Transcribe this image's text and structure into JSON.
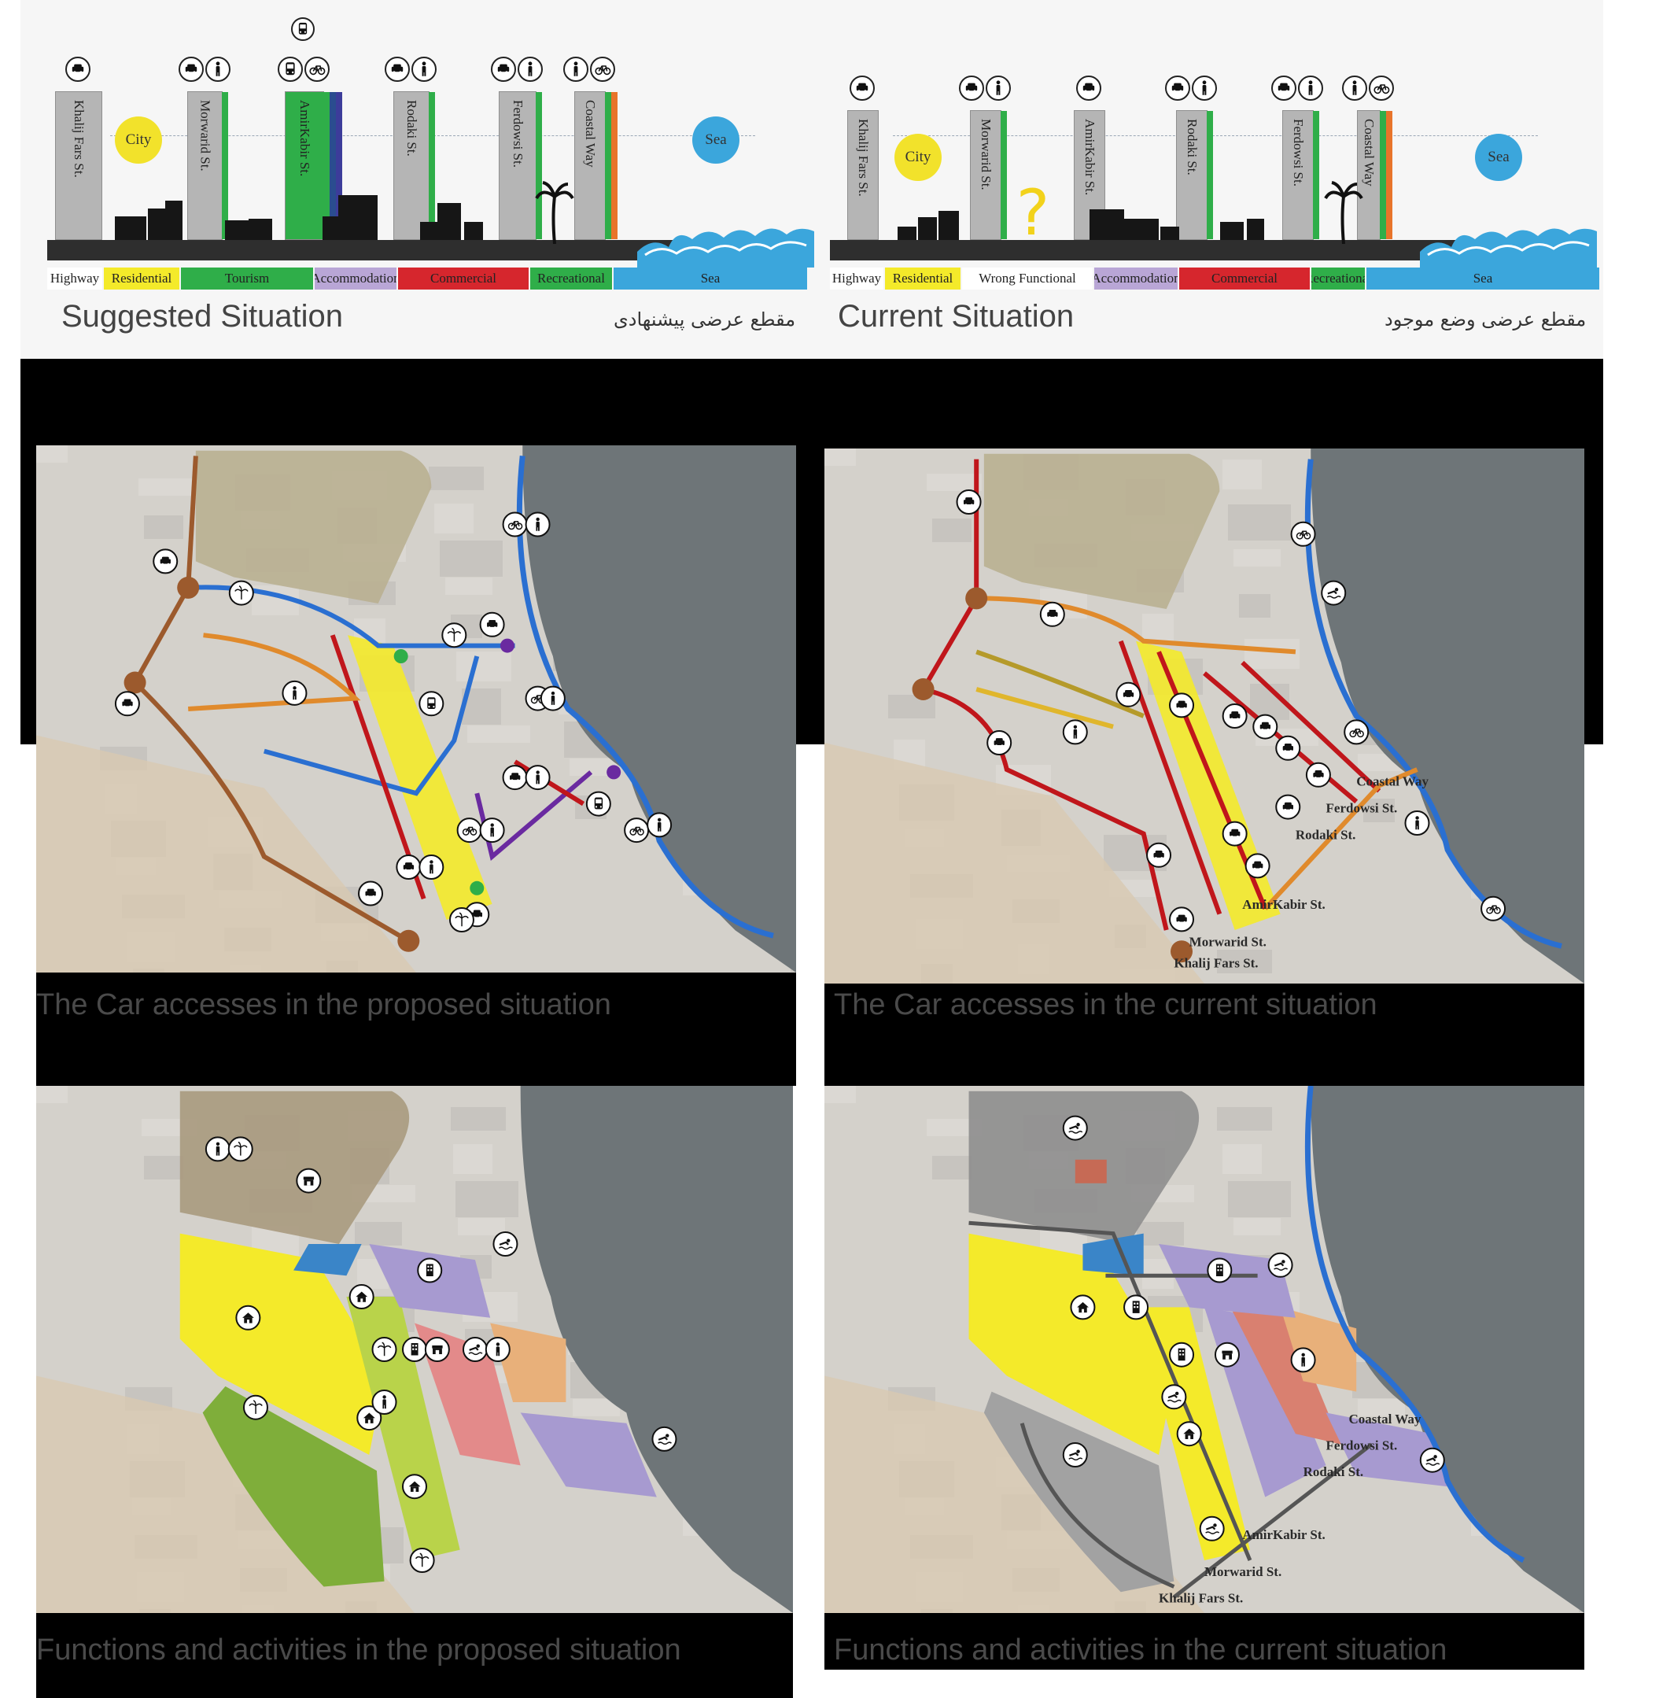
{
  "sections": {
    "suggested": {
      "title": "Suggested Situation",
      "subtitle_fa": "مقطع عرضی پیشنهادی",
      "city_label": "City",
      "sea_label": "Sea",
      "streets": [
        "Khalij Fars St.",
        "Morwarid St.",
        "AmirKabir St.",
        "Rodaki St.",
        "Ferdowsi St.",
        "Coastal Way"
      ],
      "legend": [
        "Highway",
        "Residential",
        "Tourism",
        "Accommodation",
        "Commercial",
        "Recreational",
        "Sea"
      ]
    },
    "current": {
      "title": "Current Situation",
      "subtitle_fa": "مقطع عرضی وضع موجود",
      "city_label": "City",
      "sea_label": "Sea",
      "question_mark": "?",
      "streets": [
        "Khalij Fars St.",
        "Morwarid St.",
        "AmirKabir St.",
        "Rodaki St.",
        "Ferdowsi St.",
        "Coastal Way"
      ],
      "legend": [
        "Highway",
        "Residential",
        "Wrong Functional",
        "Accommodation",
        "Commercial",
        "Recreational",
        "Sea"
      ]
    }
  },
  "maps": {
    "car_proposed": {
      "caption": "The Car accesses in the proposed situation"
    },
    "car_current": {
      "caption": "The Car accesses in the current situation",
      "labels": [
        "Coastal Way",
        "Ferdowsi St.",
        "Rodaki  St.",
        "AmirKabir St.",
        "Morwarid St.",
        "Khalij Fars St."
      ]
    },
    "func_proposed": {
      "caption": "Functions and activities in the proposed situation"
    },
    "func_current": {
      "caption": "Functions and activities in the current situation",
      "labels": [
        "Coastal Way",
        "Ferdowsi St.",
        "Rodaki  St.",
        "AmirKabir St.",
        "Morwarid St.",
        "Khalij Fars St."
      ]
    }
  },
  "colors": {
    "highway": "#ffffff",
    "residential": "#f4ea2a",
    "tourism": "#2fae49",
    "accommodation": "#b9a6d6",
    "commercial": "#d6262d",
    "recreational": "#2fae49",
    "sea": "#3ba6dc",
    "wrong_functional": "#ffffff",
    "route_blue": "#2a6fd1",
    "route_red": "#c0161b",
    "route_brown": "#9c5a2d",
    "route_orange": "#e08a2c",
    "route_purple": "#6a2aa0"
  },
  "icons": [
    "car-icon",
    "pedestrian-icon",
    "bicycle-icon",
    "bus-icon",
    "home-icon",
    "palm-icon",
    "shop-icon",
    "hotel-icon",
    "swim-icon"
  ]
}
